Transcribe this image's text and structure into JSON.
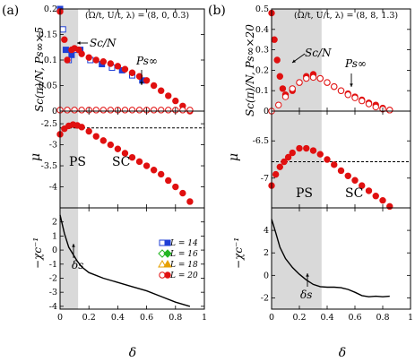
{
  "panels": [
    {
      "id": "a",
      "label": "(a)",
      "params": "(Ω/t, U/t, λ) = (8, 0, 0.3)",
      "ps_label": "PS",
      "sc_label": "SC",
      "delta_s_label": "δs",
      "sc_curve_label": "Sc/N",
      "ps_curve_label": "Ps∞",
      "shade_range": [
        0,
        0.125
      ]
    },
    {
      "id": "b",
      "label": "(b)",
      "params": "(Ω/t, U/t, λ) = (8, 8, 1.3)",
      "ps_label": "PS",
      "sc_label": "SC",
      "delta_s_label": "δs",
      "sc_curve_label": "Sc/N",
      "ps_curve_label": "Ps∞",
      "shade_range": [
        0,
        0.36
      ]
    }
  ],
  "axis_labels": {
    "x": "δ",
    "top_a": "Sc(π)/N, Ps∞×5",
    "top_b": "Sc(π)/N, Ps∞×20",
    "mid": "μ",
    "bot": "−χc⁻¹"
  },
  "legend": [
    {
      "label": "L = 14",
      "marker": "open-square",
      "color": "#1f3fd6"
    },
    {
      "label": "L = 16",
      "marker": "open-diamond",
      "color": "#22b522"
    },
    {
      "label": "L = 18",
      "marker": "open-triangle",
      "color": "#e6a000"
    },
    {
      "label": "L = 20",
      "marker": "open-circle",
      "color": "#e01010"
    }
  ],
  "chart_data": [
    {
      "type": "scatter",
      "panel": "a-top",
      "xlim": [
        0,
        1
      ],
      "ylim": [
        0,
        0.2
      ],
      "yticks": [
        0,
        0.05,
        0.1,
        0.15,
        0.2
      ],
      "series": [
        {
          "name": "L = 14",
          "kind": "Sc",
          "x": [
            0,
            0.02,
            0.04,
            0.06,
            0.08,
            0.1,
            0.14,
            0.21,
            0.29,
            0.36,
            0.43,
            0.5,
            0.57
          ],
          "y": [
            0.2,
            0.16,
            0.12,
            0.1,
            0.11,
            0.12,
            0.12,
            0.1,
            0.092,
            0.085,
            0.08,
            0.07,
            0.06
          ]
        },
        {
          "name": "L = 20",
          "kind": "Sc",
          "x": [
            0,
            0.03,
            0.05,
            0.08,
            0.1,
            0.13,
            0.15,
            0.2,
            0.25,
            0.3,
            0.35,
            0.4,
            0.45,
            0.5,
            0.55,
            0.6,
            0.65,
            0.7,
            0.75,
            0.8,
            0.85,
            0.9
          ],
          "y": [
            0.195,
            0.14,
            0.1,
            0.12,
            0.123,
            0.12,
            0.112,
            0.105,
            0.1,
            0.097,
            0.093,
            0.088,
            0.082,
            0.075,
            0.068,
            0.06,
            0.05,
            0.04,
            0.03,
            0.02,
            0.01,
            0.0
          ]
        },
        {
          "name": "L = 20",
          "kind": "Ps",
          "x": [
            0,
            0.05,
            0.1,
            0.15,
            0.2,
            0.25,
            0.3,
            0.35,
            0.4,
            0.45,
            0.5,
            0.55,
            0.6,
            0.65,
            0.7,
            0.75,
            0.8,
            0.85,
            0.9
          ],
          "y": [
            0.002,
            0.002,
            0.002,
            0.002,
            0.002,
            0.002,
            0.002,
            0.002,
            0.002,
            0.002,
            0.002,
            0.002,
            0.002,
            0.002,
            0.002,
            0.002,
            0.002,
            0.002,
            0.002
          ]
        }
      ]
    },
    {
      "type": "scatter",
      "panel": "a-mid",
      "xlim": [
        0,
        1
      ],
      "ylim": [
        -4.5,
        -2.2
      ],
      "yticks": [
        -2.5,
        -3,
        -3.5,
        -4
      ],
      "dashed_level": -2.6,
      "series": [
        {
          "name": "L = 20",
          "x": [
            0,
            0.03,
            0.06,
            0.09,
            0.12,
            0.15,
            0.2,
            0.25,
            0.3,
            0.35,
            0.4,
            0.45,
            0.5,
            0.55,
            0.6,
            0.65,
            0.7,
            0.75,
            0.8,
            0.85,
            0.9
          ],
          "y": [
            -2.75,
            -2.62,
            -2.55,
            -2.52,
            -2.54,
            -2.58,
            -2.68,
            -2.8,
            -2.9,
            -3.0,
            -3.1,
            -3.2,
            -3.3,
            -3.4,
            -3.5,
            -3.6,
            -3.7,
            -3.85,
            -4.0,
            -4.15,
            -4.35
          ]
        }
      ]
    },
    {
      "type": "line",
      "panel": "a-bot",
      "xlim": [
        0,
        1
      ],
      "ylim": [
        -4.2,
        3
      ],
      "yticks": [
        2,
        1,
        0,
        -1,
        -2,
        -3,
        -4
      ],
      "series": [
        {
          "name": "L = 20",
          "x": [
            0,
            0.03,
            0.06,
            0.09,
            0.12,
            0.15,
            0.2,
            0.3,
            0.4,
            0.5,
            0.6,
            0.7,
            0.8,
            0.9
          ],
          "y": [
            2.5,
            1.2,
            0.2,
            -0.3,
            -0.8,
            -1.2,
            -1.6,
            -2.0,
            -2.3,
            -2.6,
            -2.9,
            -3.3,
            -3.7,
            -4.0
          ]
        }
      ]
    },
    {
      "type": "scatter",
      "panel": "b-top",
      "xlim": [
        0,
        1
      ],
      "ylim": [
        0,
        0.5
      ],
      "yticks": [
        0,
        0.1,
        0.2,
        0.3,
        0.4,
        0.5
      ],
      "series": [
        {
          "name": "L = 20",
          "kind": "Sc",
          "x": [
            0,
            0.02,
            0.04,
            0.06,
            0.08,
            0.1,
            0.15,
            0.2,
            0.25,
            0.3,
            0.35,
            0.4,
            0.45,
            0.5,
            0.55,
            0.6,
            0.65,
            0.7,
            0.75,
            0.8,
            0.85
          ],
          "y": [
            0.48,
            0.35,
            0.25,
            0.17,
            0.11,
            0.08,
            0.1,
            0.14,
            0.17,
            0.18,
            0.16,
            0.14,
            0.12,
            0.1,
            0.085,
            0.07,
            0.055,
            0.04,
            0.03,
            0.015,
            0.005
          ]
        },
        {
          "name": "L = 20",
          "kind": "Ps",
          "x": [
            0,
            0.05,
            0.1,
            0.15,
            0.2,
            0.25,
            0.3,
            0.35,
            0.4,
            0.45,
            0.5,
            0.55,
            0.6,
            0.65,
            0.7,
            0.75,
            0.8,
            0.85
          ],
          "y": [
            0.0,
            0.03,
            0.07,
            0.11,
            0.14,
            0.16,
            0.165,
            0.16,
            0.14,
            0.12,
            0.1,
            0.08,
            0.065,
            0.05,
            0.035,
            0.02,
            0.01,
            0.005
          ]
        }
      ]
    },
    {
      "type": "scatter",
      "panel": "b-mid",
      "xlim": [
        0,
        1
      ],
      "ylim": [
        -7.4,
        -6.1
      ],
      "yticks": [
        -6.5,
        -7
      ],
      "dashed_level": -6.78,
      "series": [
        {
          "name": "L = 20",
          "x": [
            0,
            0.03,
            0.06,
            0.09,
            0.12,
            0.15,
            0.2,
            0.25,
            0.3,
            0.35,
            0.4,
            0.45,
            0.5,
            0.55,
            0.6,
            0.65,
            0.7,
            0.75,
            0.8,
            0.85
          ],
          "y": [
            -7.1,
            -6.95,
            -6.85,
            -6.78,
            -6.72,
            -6.66,
            -6.6,
            -6.6,
            -6.63,
            -6.68,
            -6.75,
            -6.82,
            -6.9,
            -6.97,
            -7.03,
            -7.1,
            -7.17,
            -7.24,
            -7.3,
            -7.38
          ]
        }
      ]
    },
    {
      "type": "line",
      "panel": "b-bot",
      "xlim": [
        0,
        1
      ],
      "ylim": [
        -3,
        6
      ],
      "yticks": [
        4,
        2,
        0,
        -2
      ],
      "series": [
        {
          "name": "L = 20",
          "x": [
            0,
            0.03,
            0.06,
            0.1,
            0.15,
            0.2,
            0.25,
            0.3,
            0.35,
            0.4,
            0.45,
            0.5,
            0.55,
            0.6,
            0.65,
            0.7,
            0.75,
            0.8,
            0.85
          ],
          "y": [
            5.0,
            3.8,
            2.5,
            1.5,
            0.7,
            0.1,
            -0.4,
            -0.8,
            -1.0,
            -1.05,
            -1.05,
            -1.1,
            -1.25,
            -1.5,
            -1.8,
            -1.9,
            -1.85,
            -1.9,
            -1.85
          ]
        }
      ]
    }
  ],
  "x_ticks": [
    0,
    0.2,
    0.4,
    0.6,
    0.8,
    1
  ],
  "x_tick_labels": [
    "0",
    "0.2",
    "0.4",
    "0.6",
    "0.8",
    "1"
  ]
}
